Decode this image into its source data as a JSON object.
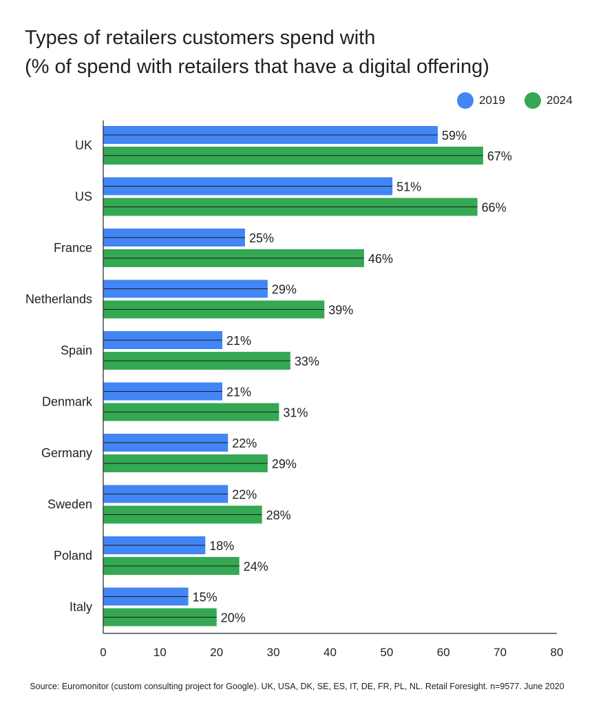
{
  "title_lines": [
    "Types of retailers customers spend with",
    "(% of spend with retailers that have a digital offering)"
  ],
  "source": "Source: Euromonitor (custom consulting project for Google). UK, USA, DK, SE, ES, IT, DE, FR, PL, NL. Retail Foresight. n=9577. June 2020",
  "colors": {
    "s2019": "#4285f4",
    "s2024": "#34a853",
    "axis": "#202124"
  },
  "chart_data": {
    "type": "bar",
    "orientation": "horizontal",
    "title": "Types of retailers customers spend with (% of spend with retailers that have a digital offering)",
    "categories": [
      "UK",
      "US",
      "France",
      "Netherlands",
      "Spain",
      "Denmark",
      "Germany",
      "Sweden",
      "Poland",
      "Italy"
    ],
    "series": [
      {
        "name": "2019",
        "values": [
          59,
          51,
          25,
          29,
          21,
          21,
          22,
          22,
          18,
          15
        ],
        "labels": [
          "59%",
          "51%",
          "25%",
          "29%",
          "21%",
          "21%",
          "22%",
          "22%",
          "18%",
          "15%"
        ]
      },
      {
        "name": "2024",
        "values": [
          67,
          66,
          46,
          39,
          33,
          31,
          29,
          28,
          24,
          20
        ],
        "labels": [
          "67%",
          "66%",
          "46%",
          "39%",
          "33%",
          "31%",
          "29%",
          "28%",
          "24%",
          "20%"
        ]
      }
    ],
    "xlim": [
      0,
      80
    ],
    "xticks": [
      "0",
      "10",
      "20",
      "30",
      "40",
      "50",
      "60",
      "70",
      "80"
    ],
    "xlabel": "",
    "ylabel": "",
    "legend": "top-right",
    "grid": false
  }
}
